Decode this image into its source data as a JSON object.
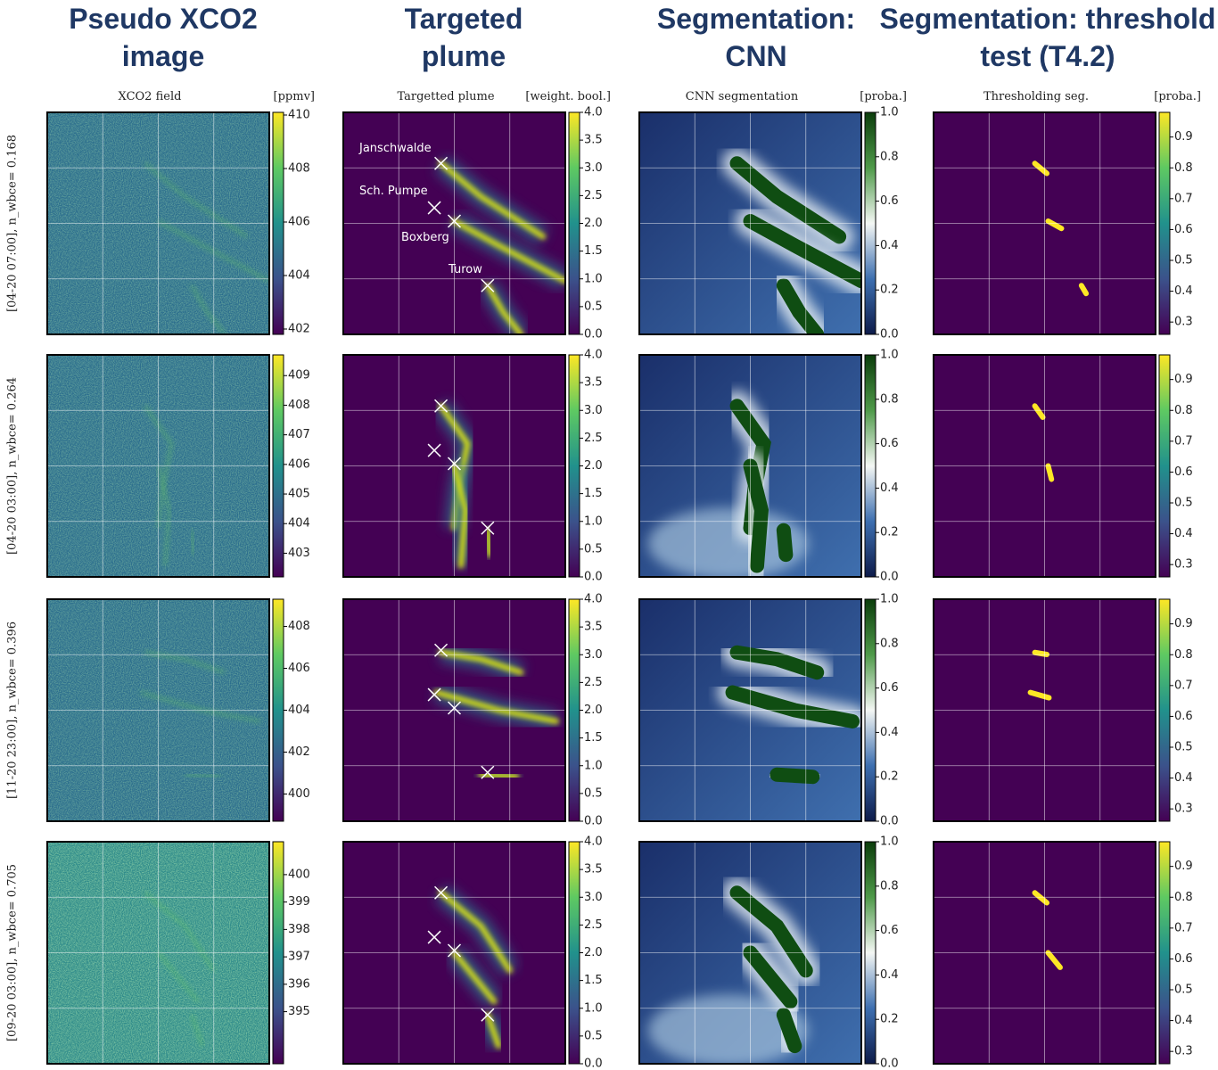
{
  "columns": [
    {
      "title": "Pseudo XCO2 image",
      "subtitle": "XCO2 field",
      "unit": "[ppmv]"
    },
    {
      "title": "Targeted plume",
      "subtitle": "Targetted plume",
      "unit": "[weight. bool.]"
    },
    {
      "title": "Segmentation: CNN",
      "subtitle": "CNN segmentation",
      "unit": "[proba.]"
    },
    {
      "title": "Segmentation: threshold test (T4.2)",
      "subtitle": "Thresholding seg.",
      "unit": "[proba.]"
    }
  ],
  "rows": [
    {
      "label": "[04-20 07:00], n_wbce= 0.168",
      "colorbars": [
        {
          "lim": [
            401.8,
            410.1
          ],
          "ticks": [
            402,
            404,
            406,
            408,
            410
          ]
        },
        {
          "lim": [
            0,
            4
          ],
          "ticks": [
            {
              "value": 0,
              "label": "0.0"
            },
            0.5,
            {
              "value": 1,
              "label": "1.0"
            },
            1.5,
            {
              "value": 2,
              "label": "2.0"
            },
            2.5,
            {
              "value": 3,
              "label": "3.0"
            },
            3.5,
            {
              "value": 4,
              "label": "4.0"
            }
          ]
        },
        {
          "lim": [
            0,
            1
          ],
          "ticks": [
            {
              "value": 0,
              "label": "0.0"
            },
            0.2,
            0.4,
            0.6,
            0.8,
            {
              "value": 1,
              "label": "1.0"
            }
          ]
        },
        {
          "lim": [
            0.26,
            0.98
          ],
          "ticks": [
            0.3,
            0.4,
            0.5,
            0.6,
            0.7,
            0.8,
            0.9
          ]
        }
      ]
    },
    {
      "label": "[04-20 03:00], n_wbce= 0.264",
      "colorbars": [
        {
          "lim": [
            402.2,
            409.7
          ],
          "ticks": [
            403,
            404,
            405,
            406,
            407,
            408,
            409
          ]
        },
        {
          "lim": [
            0,
            4
          ],
          "ticks": [
            {
              "value": 0,
              "label": "0.0"
            },
            0.5,
            {
              "value": 1,
              "label": "1.0"
            },
            1.5,
            {
              "value": 2,
              "label": "2.0"
            },
            2.5,
            {
              "value": 3,
              "label": "3.0"
            },
            3.5,
            {
              "value": 4,
              "label": "4.0"
            }
          ]
        },
        {
          "lim": [
            0,
            1
          ],
          "ticks": [
            {
              "value": 0,
              "label": "0.0"
            },
            0.2,
            0.4,
            0.6,
            0.8,
            {
              "value": 1,
              "label": "1.0"
            }
          ]
        },
        {
          "lim": [
            0.26,
            0.98
          ],
          "ticks": [
            0.3,
            0.4,
            0.5,
            0.6,
            0.7,
            0.8,
            0.9
          ]
        }
      ]
    },
    {
      "label": "[11-20 23:00], n_wbce= 0.396",
      "colorbars": [
        {
          "lim": [
            398.7,
            409.3
          ],
          "ticks": [
            400,
            402,
            404,
            406,
            408
          ]
        },
        {
          "lim": [
            0,
            4
          ],
          "ticks": [
            {
              "value": 0,
              "label": "0.0"
            },
            0.5,
            {
              "value": 1,
              "label": "1.0"
            },
            1.5,
            {
              "value": 2,
              "label": "2.0"
            },
            2.5,
            {
              "value": 3,
              "label": "3.0"
            },
            3.5,
            {
              "value": 4,
              "label": "4.0"
            }
          ]
        },
        {
          "lim": [
            0,
            1
          ],
          "ticks": [
            {
              "value": 0,
              "label": "0.0"
            },
            0.2,
            0.4,
            0.6,
            0.8,
            {
              "value": 1,
              "label": "1.0"
            }
          ]
        },
        {
          "lim": [
            0.26,
            0.98
          ],
          "ticks": [
            0.3,
            0.4,
            0.5,
            0.6,
            0.7,
            0.8,
            0.9
          ]
        }
      ]
    },
    {
      "label": "[09-20 03:00], n_wbce= 0.705",
      "colorbars": [
        {
          "lim": [
            393.1,
            401.2
          ],
          "ticks": [
            395,
            396,
            397,
            398,
            399,
            400
          ]
        },
        {
          "lim": [
            0,
            4
          ],
          "ticks": [
            {
              "value": 0,
              "label": "0.0"
            },
            0.5,
            {
              "value": 1,
              "label": "1.0"
            },
            1.5,
            {
              "value": 2,
              "label": "2.0"
            },
            2.5,
            {
              "value": 3,
              "label": "3.0"
            },
            3.5,
            {
              "value": 4,
              "label": "4.0"
            }
          ]
        },
        {
          "lim": [
            0,
            1
          ],
          "ticks": [
            {
              "value": 0,
              "label": "0.0"
            },
            0.2,
            0.4,
            0.6,
            0.8,
            {
              "value": 1,
              "label": "1.0"
            }
          ]
        },
        {
          "lim": [
            0.26,
            0.98
          ],
          "ticks": [
            0.3,
            0.4,
            0.5,
            0.6,
            0.7,
            0.8,
            0.9
          ]
        }
      ]
    }
  ],
  "sources": [
    "Janschwalde",
    "Sch. Pumpe",
    "Boxberg",
    "Turow"
  ]
}
